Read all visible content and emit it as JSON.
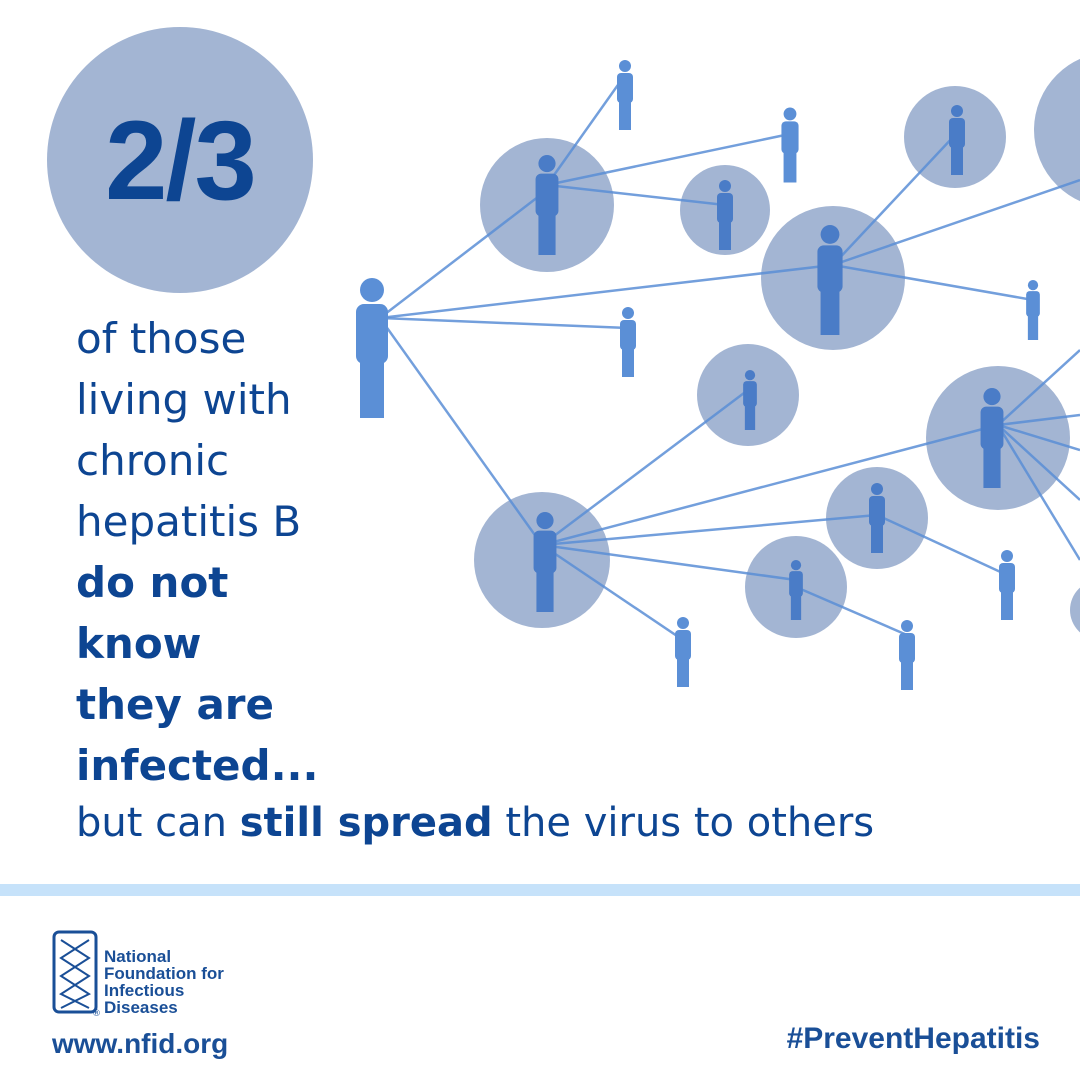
{
  "statistic": "2/3",
  "body_lines": [
    {
      "text": "of those",
      "bold": false
    },
    {
      "text": "living with",
      "bold": false
    },
    {
      "text": "chronic",
      "bold": false
    },
    {
      "text": "hepatitis B",
      "bold": false
    },
    {
      "text": "do not",
      "bold": true
    },
    {
      "text": "know",
      "bold": true
    },
    {
      "text": "they are",
      "bold": true
    },
    {
      "text": "infected...",
      "bold": true
    }
  ],
  "tagline": {
    "pre": "but can ",
    "bold": "still spread",
    "post": " the virus to others"
  },
  "footer": {
    "org_name_lines": [
      "National",
      "Foundation for",
      "Infectious",
      "Diseases"
    ],
    "registered_mark": "®",
    "url": "www.nfid.org",
    "hashtag": "#PreventHepatitis"
  },
  "colors": {
    "text": "#0d4592",
    "circle": "#a3b5d3",
    "figure": "#5b8fd6",
    "figure_in_circle": "#4a7cc7",
    "stripe": "#c6e2fa"
  }
}
